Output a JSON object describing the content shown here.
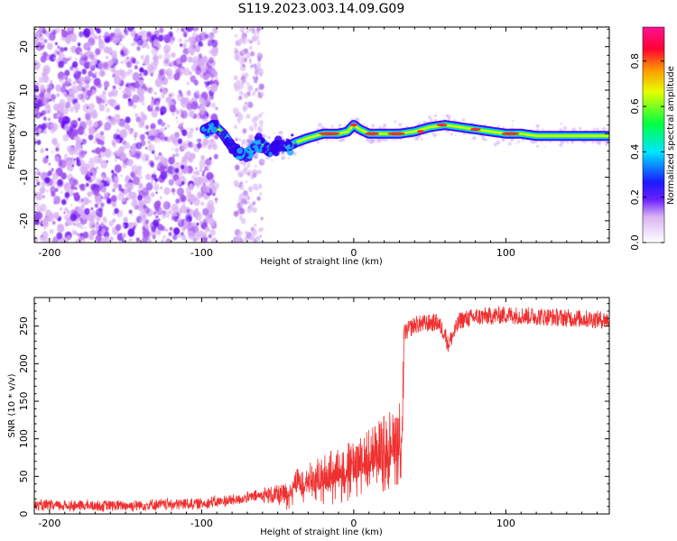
{
  "title": "S119.2023.003.14.09.G09",
  "chart_data": [
    {
      "type": "heatmap",
      "xlabel": "Height of straight line (km)",
      "ylabel": "Frequency (Hz)",
      "xlim": [
        -210,
        168
      ],
      "ylim": [
        -25,
        24.5
      ],
      "xticks": [
        -200,
        -100,
        0,
        100
      ],
      "yticks": [
        -20,
        -10,
        0,
        10,
        20
      ],
      "grid": false,
      "colorbar": {
        "label": "Normalized spectral amplitude",
        "range": [
          0,
          0.95
        ],
        "ticks": [
          0.0,
          0.2,
          0.4,
          0.6,
          0.8
        ],
        "colors": [
          "#f2d9f7",
          "#8a2be2",
          "#3300ff",
          "#00e5ff",
          "#00ff66",
          "#e5ff00",
          "#ff9900",
          "#ff0040",
          "#ff1493"
        ]
      },
      "ridge": {
        "x": [
          -98,
          -92,
          -86,
          -80,
          -74,
          -68,
          -62,
          -56,
          -50,
          -44,
          -38,
          -30,
          -20,
          -10,
          -4,
          0,
          4,
          10,
          20,
          30,
          40,
          50,
          60,
          70,
          80,
          90,
          100,
          110,
          120,
          140,
          168
        ],
        "y": [
          1,
          2,
          0,
          -3,
          -5,
          -4,
          -2,
          -4,
          -3,
          -3,
          -2,
          -1,
          0,
          0,
          0.5,
          2,
          1,
          0,
          0,
          0,
          0.5,
          1.5,
          2,
          1.5,
          1,
          0.5,
          0,
          0,
          -0.5,
          -0.5,
          -0.5
        ]
      }
    },
    {
      "type": "line",
      "xlabel": "Height of straight line (km)",
      "ylabel": "SNR (10 * v/v)",
      "xlim": [
        -210,
        168
      ],
      "ylim": [
        0,
        288
      ],
      "xticks": [
        -200,
        -100,
        0,
        100
      ],
      "yticks": [
        0,
        50,
        100,
        150,
        200,
        250
      ],
      "grid": false,
      "series": [
        {
          "color": "#f03030",
          "x": [
            -210,
            -150,
            -100,
            -80,
            -60,
            -45,
            -40,
            -20,
            0,
            10,
            20,
            30,
            32,
            33,
            40,
            55,
            60,
            62,
            70,
            80,
            100,
            130,
            168
          ],
          "y": [
            11,
            11,
            14,
            18,
            25,
            25,
            40,
            55,
            70,
            80,
            95,
            110,
            118,
            240,
            252,
            255,
            240,
            225,
            258,
            262,
            265,
            262,
            258
          ]
        }
      ]
    }
  ]
}
